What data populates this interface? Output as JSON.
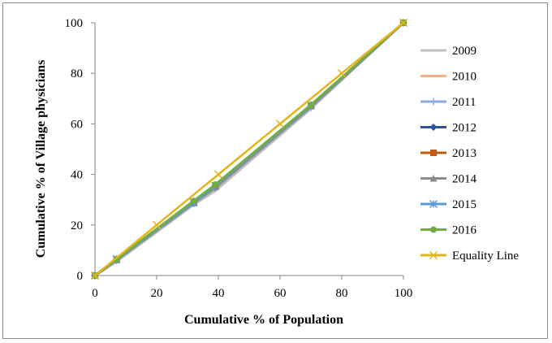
{
  "chart_data": {
    "type": "line",
    "title": "",
    "xlabel": "Cumulative %  of  Population",
    "ylabel": "Cumulative % of Village physicians",
    "xlim": [
      0,
      100
    ],
    "ylim": [
      0,
      100
    ],
    "xticks": [
      0,
      20,
      40,
      60,
      80,
      100
    ],
    "yticks": [
      0,
      20,
      40,
      60,
      80,
      100
    ],
    "grid": false,
    "legend_position": "right",
    "series": [
      {
        "name": "2009",
        "color": "#BFBFBF",
        "marker": "none",
        "x": [
          0,
          7,
          32,
          39,
          70,
          100
        ],
        "y": [
          0,
          5.5,
          28,
          33.5,
          66,
          100
        ]
      },
      {
        "name": "2010",
        "color": "#F4B183",
        "marker": "none",
        "x": [
          0,
          7,
          32,
          39,
          70,
          100
        ],
        "y": [
          0,
          6,
          28.5,
          34,
          66.5,
          100
        ]
      },
      {
        "name": "2011",
        "color": "#8FAADC",
        "marker": "plus",
        "x": [
          0,
          7,
          32,
          39,
          70,
          100
        ],
        "y": [
          0,
          6,
          28.5,
          34.5,
          66.5,
          100
        ]
      },
      {
        "name": "2012",
        "color": "#2F5597",
        "marker": "diamond",
        "x": [
          0,
          7,
          32,
          39,
          70,
          100
        ],
        "y": [
          0,
          6.2,
          28.8,
          35,
          67,
          100
        ]
      },
      {
        "name": "2013",
        "color": "#C55A11",
        "marker": "square",
        "x": [
          0,
          7,
          32,
          39,
          70,
          100
        ],
        "y": [
          0,
          6.3,
          29,
          35.2,
          67,
          100
        ]
      },
      {
        "name": "2014",
        "color": "#8C8C8C",
        "marker": "triangle",
        "x": [
          0,
          7,
          32,
          39,
          70,
          100
        ],
        "y": [
          0,
          6.2,
          28.7,
          35,
          67,
          100
        ]
      },
      {
        "name": "2015",
        "color": "#5B9BD5",
        "marker": "star",
        "x": [
          0,
          7,
          32,
          39,
          70,
          100
        ],
        "y": [
          0,
          6.5,
          29,
          35.5,
          67.5,
          100
        ]
      },
      {
        "name": "2016",
        "color": "#70AD47",
        "marker": "circle",
        "x": [
          0,
          7,
          32,
          39,
          70,
          100
        ],
        "y": [
          0,
          6.5,
          29.5,
          36,
          67.5,
          100
        ]
      },
      {
        "name": "Equality Line",
        "color": "#E6B416",
        "marker": "x",
        "x": [
          0,
          20,
          40,
          60,
          80,
          100
        ],
        "y": [
          0,
          20,
          40,
          60,
          80,
          100
        ]
      }
    ]
  }
}
